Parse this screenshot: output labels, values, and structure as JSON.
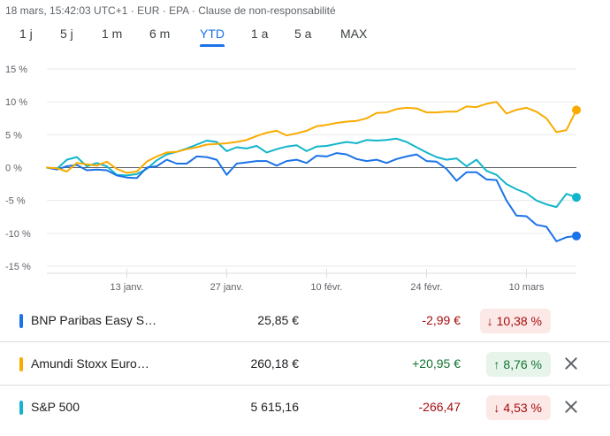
{
  "header": {
    "meta": "18 mars, 15:42:03 UTC+1 · EUR · EPA · Clause de non-responsabilité"
  },
  "ranges": [
    {
      "label": "1 j",
      "active": false
    },
    {
      "label": "5 j",
      "active": false
    },
    {
      "label": "1 m",
      "active": false
    },
    {
      "label": "6 m",
      "active": false
    },
    {
      "label": "YTD",
      "active": true
    },
    {
      "label": "1 a",
      "active": false
    },
    {
      "label": "5 a",
      "active": false
    },
    {
      "label": "MAX",
      "active": false
    }
  ],
  "chart_data": {
    "type": "line",
    "title": "",
    "xlabel": "",
    "ylabel": "",
    "ylim": [
      -15,
      15
    ],
    "yticks": [
      15,
      10,
      5,
      0,
      -5,
      -10,
      -15
    ],
    "ytick_labels": [
      "15 %",
      "10 %",
      "5 %",
      "0 %",
      "-5 %",
      "-10 %",
      "-15 %"
    ],
    "xlim": [
      0,
      53
    ],
    "xticks": [
      {
        "x": 8,
        "label": "13 janv."
      },
      {
        "x": 18,
        "label": "27 janv."
      },
      {
        "x": 28,
        "label": "10 févr."
      },
      {
        "x": 38,
        "label": "24 févr."
      },
      {
        "x": 48,
        "label": "10 mars"
      }
    ],
    "baseline": 0,
    "grid": true,
    "series": [
      {
        "name": "BNP Paribas Easy S…",
        "color": "#1a73e8",
        "x": [
          0,
          1,
          2,
          3,
          4,
          5,
          6,
          7,
          8,
          9,
          10,
          11,
          12,
          13,
          14,
          15,
          16,
          17,
          18,
          19,
          20,
          21,
          22,
          23,
          24,
          25,
          26,
          27,
          28,
          29,
          30,
          31,
          32,
          33,
          34,
          35,
          36,
          37,
          38,
          39,
          40,
          41,
          42,
          43,
          44,
          45,
          46,
          47,
          48,
          49,
          50,
          51,
          52,
          53
        ],
        "values": [
          0.0,
          -0.3,
          0.2,
          0.4,
          -0.4,
          -0.3,
          -0.4,
          -1.2,
          -1.5,
          -1.6,
          0.0,
          0.2,
          1.2,
          0.6,
          0.6,
          1.7,
          1.6,
          1.2,
          -1.1,
          0.6,
          0.8,
          1.0,
          1.0,
          0.3,
          1.0,
          1.2,
          0.7,
          1.8,
          1.7,
          2.2,
          2.0,
          1.3,
          1.0,
          1.2,
          0.7,
          1.3,
          1.7,
          2.0,
          1.0,
          0.9,
          -0.2,
          -2.0,
          -0.7,
          -0.7,
          -1.8,
          -1.9,
          -5.0,
          -7.3,
          -7.4,
          -8.7,
          -9.0,
          -11.2,
          -10.6,
          -10.4
        ]
      },
      {
        "name": "Amundi Stoxx Euro…",
        "color": "#f9ab00",
        "x": [
          0,
          1,
          2,
          3,
          4,
          5,
          6,
          7,
          8,
          9,
          10,
          11,
          12,
          13,
          14,
          15,
          16,
          17,
          18,
          19,
          20,
          21,
          22,
          23,
          24,
          25,
          26,
          27,
          28,
          29,
          30,
          31,
          32,
          33,
          34,
          35,
          36,
          37,
          38,
          39,
          40,
          41,
          42,
          43,
          44,
          45,
          46,
          47,
          48,
          49,
          50,
          51,
          52,
          53
        ],
        "values": [
          0.0,
          -0.1,
          -0.6,
          0.7,
          0.5,
          0.3,
          0.9,
          -0.2,
          -0.8,
          -0.6,
          0.9,
          1.7,
          2.3,
          2.4,
          2.8,
          3.1,
          3.5,
          3.6,
          3.7,
          3.9,
          4.2,
          4.8,
          5.3,
          5.6,
          4.9,
          5.2,
          5.6,
          6.3,
          6.5,
          6.8,
          7.0,
          7.1,
          7.5,
          8.3,
          8.4,
          8.9,
          9.1,
          9.0,
          8.4,
          8.4,
          8.5,
          8.5,
          9.3,
          9.2,
          9.7,
          10.0,
          8.2,
          8.8,
          9.1,
          8.5,
          7.5,
          5.4,
          5.7,
          8.76
        ]
      },
      {
        "name": "S&P 500",
        "color": "#12b5cb",
        "x": [
          0,
          1,
          2,
          3,
          4,
          5,
          6,
          7,
          8,
          9,
          10,
          11,
          12,
          13,
          14,
          15,
          16,
          17,
          18,
          19,
          20,
          21,
          22,
          23,
          24,
          25,
          26,
          27,
          28,
          29,
          30,
          31,
          32,
          33,
          34,
          35,
          36,
          37,
          38,
          39,
          40,
          41,
          42,
          43,
          44,
          45,
          46,
          47,
          48,
          49,
          50,
          51,
          52,
          53
        ],
        "values": [
          0.0,
          -0.2,
          1.2,
          1.6,
          0.2,
          0.7,
          0.2,
          -1.1,
          -1.2,
          -1.0,
          -0.2,
          1.1,
          2.0,
          2.4,
          2.9,
          3.5,
          4.1,
          3.9,
          2.5,
          3.1,
          2.9,
          3.3,
          2.3,
          2.8,
          3.2,
          3.4,
          2.5,
          3.2,
          3.3,
          3.6,
          3.9,
          3.7,
          4.2,
          4.1,
          4.2,
          4.4,
          3.9,
          3.1,
          2.3,
          1.6,
          1.2,
          1.4,
          0.2,
          1.2,
          -0.5,
          -1.1,
          -2.5,
          -3.3,
          -3.9,
          -5.0,
          -5.6,
          -6.0,
          -4.0,
          -4.53
        ]
      }
    ]
  },
  "rows": [
    {
      "name": "BNP Paribas Easy S…",
      "color": "#1a73e8",
      "price": "25,85 €",
      "change": "-2,99 €",
      "direction": "down",
      "arrow": "↓",
      "percent": "10,38 %",
      "removable": false
    },
    {
      "name": "Amundi Stoxx Euro…",
      "color": "#f9ab00",
      "price": "260,18 €",
      "change": "+20,95 €",
      "direction": "up",
      "arrow": "↑",
      "percent": "8,76 %",
      "removable": true
    },
    {
      "name": "S&P 500",
      "color": "#12b5cb",
      "price": "5 615,16",
      "change": "-266,47",
      "direction": "down",
      "arrow": "↓",
      "percent": "4,53 %",
      "removable": true
    }
  ]
}
